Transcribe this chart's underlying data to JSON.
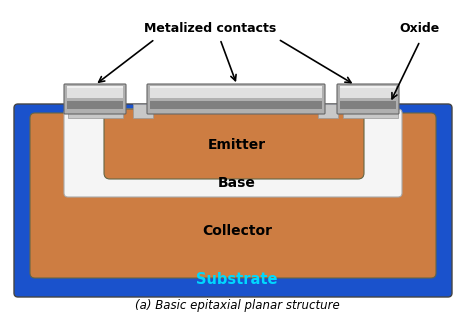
{
  "title": "(a) Basic epitaxial planar structure",
  "bg": "#ffffff",
  "substrate_color": "#1a52cc",
  "substrate_label": "Substrate",
  "substrate_label_color": "#00d8ff",
  "collector_color": "#cd7d42",
  "collector_label": "Collector",
  "base_color": "#f5f5f5",
  "base_label": "Base",
  "emitter_color": "#cd7d42",
  "emitter_label": "Emitter",
  "oxide_color": "#c8c8c8",
  "metal_light": "#e0e0e0",
  "metal_mid": "#b0b0b0",
  "metal_dark": "#808080",
  "annotation_metalized": "Metalized contacts",
  "annotation_oxide": "Oxide"
}
